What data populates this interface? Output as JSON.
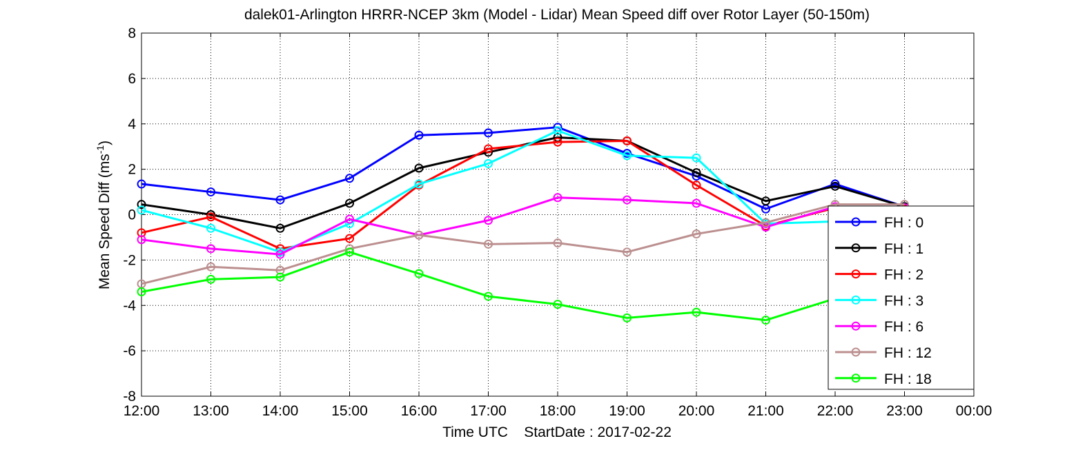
{
  "chart_data": {
    "type": "line",
    "title": "dalek01-Arlington HRRR-NCEP 3km (Model - Lidar) Mean Speed diff over Rotor Layer (50-150m)",
    "xlabel": "Time UTC    StartDate : 2017-02-22",
    "ylabel": "Mean Speed Diff (ms",
    "ylabel_sup": "-1",
    "ylabel_end": ")",
    "x": [
      "12:00",
      "13:00",
      "14:00",
      "15:00",
      "16:00",
      "17:00",
      "18:00",
      "19:00",
      "20:00",
      "21:00",
      "22:00",
      "23:00"
    ],
    "xticks": [
      "12:00",
      "13:00",
      "14:00",
      "15:00",
      "16:00",
      "17:00",
      "18:00",
      "19:00",
      "20:00",
      "21:00",
      "22:00",
      "23:00",
      "00:00"
    ],
    "ylim": [
      -8,
      8
    ],
    "yticks": [
      -8,
      -6,
      -4,
      -2,
      0,
      2,
      4,
      6,
      8
    ],
    "grid": true,
    "legend_position": "right-bottom",
    "series": [
      {
        "name": "FH : 0",
        "color": "#0000ff",
        "values": [
          1.35,
          1.0,
          0.65,
          1.6,
          3.5,
          3.6,
          3.85,
          2.7,
          1.7,
          0.25,
          1.35,
          0.35
        ]
      },
      {
        "name": "FH : 1",
        "color": "#000000",
        "values": [
          0.45,
          0.0,
          -0.6,
          0.5,
          2.05,
          2.75,
          3.4,
          3.25,
          1.85,
          0.6,
          1.25,
          0.35
        ]
      },
      {
        "name": "FH : 2",
        "color": "#ff0000",
        "values": [
          -0.8,
          -0.1,
          -1.5,
          -1.05,
          1.3,
          2.9,
          3.2,
          3.25,
          1.3,
          -0.5,
          0.3,
          0.25
        ]
      },
      {
        "name": "FH : 3",
        "color": "#00ffff",
        "values": [
          0.2,
          -0.6,
          -1.65,
          -0.4,
          1.35,
          2.25,
          3.7,
          2.6,
          2.5,
          -0.4,
          -0.3,
          -0.25
        ]
      },
      {
        "name": "FH : 6",
        "color": "#ff00ff",
        "values": [
          -1.1,
          -1.5,
          -1.75,
          -0.2,
          -0.9,
          -0.25,
          0.75,
          0.65,
          0.5,
          -0.55,
          0.35,
          0.3
        ]
      },
      {
        "name": "FH : 12",
        "color": "#bc8f8f",
        "values": [
          -3.05,
          -2.3,
          -2.45,
          -1.5,
          -0.9,
          -1.3,
          -1.25,
          -1.65,
          -0.85,
          -0.35,
          0.45,
          0.45
        ]
      },
      {
        "name": "FH : 18",
        "color": "#00ff00",
        "values": [
          -3.4,
          -2.85,
          -2.75,
          -1.65,
          -2.6,
          -3.6,
          -3.95,
          -4.55,
          -4.3,
          -4.65,
          -3.7,
          -3.3
        ]
      }
    ]
  }
}
